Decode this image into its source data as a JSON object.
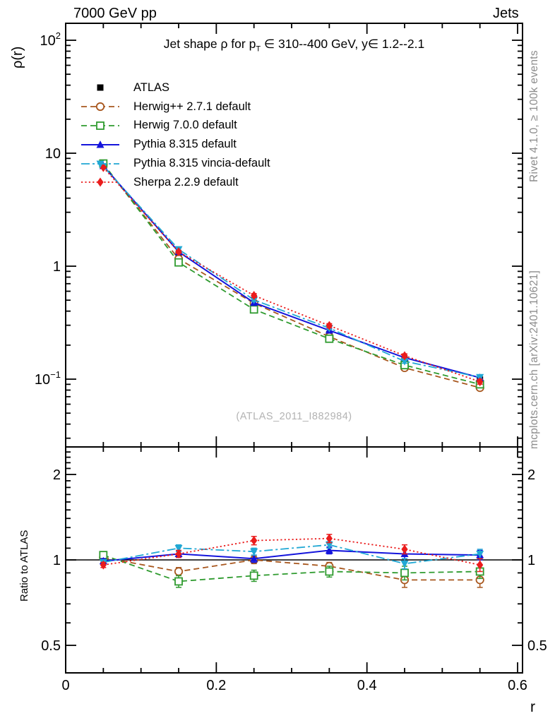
{
  "header": {
    "left": "7000 GeV pp",
    "right": "Jets"
  },
  "sidebar": {
    "rivet": "Rivet 4.1.0, ≥ 100k events",
    "mcplots": "mcplots.cern.ch [arXiv:2401.10621]"
  },
  "footnotes": {
    "watermark": "(ATLAS_2011_I882984)"
  },
  "chart_data": {
    "type": "line",
    "title_parts": {
      "part1": "Jet shape ρ for p",
      "sub": "T",
      "part2": " ∈ 310--400 GeV, y∈ 1.2--2.1"
    },
    "xlabel": "r",
    "ylabel": "ρ(r)",
    "ratio_ylabel": "Ratio to ATLAS",
    "legend_position": "top-left",
    "grid": false,
    "x": [
      0.05,
      0.15,
      0.25,
      0.35,
      0.45,
      0.55
    ],
    "x_axis": {
      "range": [
        0,
        0.6066
      ],
      "major_ticks": [
        0,
        0.2,
        0.4,
        0.6
      ],
      "tick_labels": [
        "0",
        "0.2",
        "0.4",
        "0.6"
      ],
      "minor_step": 0.05
    },
    "y_axis": {
      "scale": "log",
      "range": [
        0.025,
        135
      ],
      "tick_labels": [
        {
          "text": "10",
          "sup": "2",
          "value": 100
        },
        {
          "text": "10",
          "sup": "",
          "value": 10
        },
        {
          "text": "1",
          "sup": "",
          "value": 1
        },
        {
          "text": "10",
          "sup": "−1",
          "value": 0.1
        }
      ]
    },
    "ratio_axis": {
      "scale": "log",
      "range": [
        0.4,
        2.5
      ],
      "tick_labels": [
        {
          "text": "2",
          "value": 2
        },
        {
          "text": "1",
          "value": 1
        },
        {
          "text": "0.5",
          "value": 0.5
        }
      ]
    },
    "series": [
      {
        "id": "atlas",
        "name": "ATLAS",
        "color": "#000000",
        "marker": "square_filled",
        "line_style": "none",
        "values": [
          7.8,
          1.28,
          0.47,
          0.25,
          0.148,
          0.099
        ],
        "ratio": [
          1,
          1,
          1,
          1,
          1,
          1
        ],
        "ratio_err": [
          0.02,
          0.02,
          0.02,
          0.02,
          0.03,
          0.03
        ]
      },
      {
        "id": "herwigpp",
        "name": "Herwig++ 2.7.1 default",
        "color": "#a8571e",
        "marker": "circle_open",
        "line_style": "dashed",
        "values": [
          7.96,
          1.16,
          0.47,
          0.238,
          0.126,
          0.084
        ],
        "ratio": [
          1.02,
          0.91,
          1.0,
          0.95,
          0.85,
          0.85
        ],
        "ratio_err": [
          0.02,
          0.03,
          0.03,
          0.03,
          0.05,
          0.05
        ]
      },
      {
        "id": "herwig7",
        "name": "Herwig 7.0.0 default",
        "color": "#2f9b2f",
        "marker": "square_open",
        "line_style": "dashed",
        "values": [
          8.11,
          1.08,
          0.414,
          0.228,
          0.133,
          0.09
        ],
        "ratio": [
          1.04,
          0.84,
          0.88,
          0.91,
          0.9,
          0.91
        ],
        "ratio_err": [
          0.02,
          0.04,
          0.04,
          0.04,
          0.05,
          0.05
        ]
      },
      {
        "id": "pythia",
        "name": "Pythia 8.315 default",
        "color": "#1414dc",
        "marker": "triangle_up_filled",
        "line_style": "solid",
        "values": [
          7.72,
          1.34,
          0.475,
          0.27,
          0.155,
          0.103
        ],
        "ratio": [
          0.99,
          1.05,
          1.01,
          1.08,
          1.05,
          1.04
        ],
        "ratio_err": [
          0.02,
          0.03,
          0.03,
          0.03,
          0.04,
          0.04
        ]
      },
      {
        "id": "vincia",
        "name": "Pythia 8.315 vincia-default",
        "color": "#21a8d4",
        "marker": "triangle_down_filled",
        "line_style": "dashdot",
        "values": [
          7.64,
          1.41,
          0.503,
          0.283,
          0.144,
          0.104
        ],
        "ratio": [
          0.98,
          1.1,
          1.07,
          1.13,
          0.97,
          1.05
        ],
        "ratio_err": [
          0.02,
          0.03,
          0.03,
          0.03,
          0.04,
          0.04
        ]
      },
      {
        "id": "sherpa",
        "name": "Sherpa 2.2.9 default",
        "color": "#ea1c1c",
        "marker": "diamond_filled",
        "line_style": "dotted",
        "values": [
          7.49,
          1.34,
          0.55,
          0.298,
          0.161,
          0.095
        ],
        "ratio": [
          0.96,
          1.05,
          1.17,
          1.19,
          1.09,
          0.96
        ],
        "ratio_err": [
          0.02,
          0.03,
          0.04,
          0.04,
          0.04,
          0.05
        ]
      }
    ]
  }
}
